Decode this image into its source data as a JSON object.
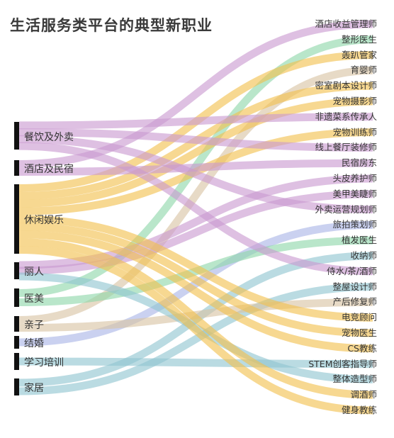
{
  "title": "生活服务类平台的典型新职业",
  "colors": {
    "pink": "#c99ad1",
    "green": "#8ed6a9",
    "yellow": "#f2c04d",
    "tan": "#d9c4a3",
    "blue": "#a9b5e6",
    "teal": "#8fc5d0"
  },
  "categories": [
    {
      "id": "canyin",
      "label": "餐饮及外卖"
    },
    {
      "id": "jiudian",
      "label": "酒店及民宿"
    },
    {
      "id": "xiuxian",
      "label": "休闲娱乐"
    },
    {
      "id": "liren",
      "label": "丽人"
    },
    {
      "id": "yimei",
      "label": "医美"
    },
    {
      "id": "qinzi",
      "label": "亲子"
    },
    {
      "id": "jiehun",
      "label": "结婚"
    },
    {
      "id": "xuexi",
      "label": "学习培训"
    },
    {
      "id": "jiaju",
      "label": "家居"
    }
  ],
  "occupations": [
    "酒店收益管理师",
    "整形医生",
    "轰趴管家",
    "育婴师",
    "密室剧本设计师",
    "宠物摄影师",
    "非遗菜系传承人",
    "宠物训练师",
    "线上餐厅装修师",
    "民宿房东",
    "头皮养护师",
    "美甲美睫师",
    "外卖运营规划师",
    "旅拍策划师",
    "植发医生",
    "收纳师",
    "侍水/茶/酒师",
    "整屋设计师",
    "产后修复师",
    "电竞顾问",
    "宠物医生",
    "CS教练",
    "STEM创客指导师",
    "整体造型师",
    "调酒师",
    "健身教练"
  ],
  "links": [
    {
      "source": "jiudian",
      "target": "酒店收益管理师",
      "color": "pink"
    },
    {
      "source": "yimei",
      "target": "整形医生",
      "color": "green"
    },
    {
      "source": "xiuxian",
      "target": "轰趴管家",
      "color": "yellow"
    },
    {
      "source": "qinzi",
      "target": "育婴师",
      "color": "tan"
    },
    {
      "source": "xiuxian",
      "target": "密室剧本设计师",
      "color": "yellow"
    },
    {
      "source": "xiuxian",
      "target": "宠物摄影师",
      "color": "yellow"
    },
    {
      "source": "canyin",
      "target": "非遗菜系传承人",
      "color": "pink"
    },
    {
      "source": "xiuxian",
      "target": "宠物训练师",
      "color": "yellow"
    },
    {
      "source": "canyin",
      "target": "线上餐厅装修师",
      "color": "pink"
    },
    {
      "source": "jiudian",
      "target": "民宿房东",
      "color": "pink"
    },
    {
      "source": "liren",
      "target": "头皮养护师",
      "color": "pink"
    },
    {
      "source": "liren",
      "target": "美甲美睫师",
      "color": "pink"
    },
    {
      "source": "canyin",
      "target": "外卖运营规划师",
      "color": "pink"
    },
    {
      "source": "jiehun",
      "target": "旅拍策划师",
      "color": "blue"
    },
    {
      "source": "yimei",
      "target": "植发医生",
      "color": "green"
    },
    {
      "source": "jiaju",
      "target": "收纳师",
      "color": "teal"
    },
    {
      "source": "canyin",
      "target": "侍水/茶/酒师",
      "color": "pink"
    },
    {
      "source": "jiaju",
      "target": "整屋设计师",
      "color": "teal"
    },
    {
      "source": "qinzi",
      "target": "产后修复师",
      "color": "tan"
    },
    {
      "source": "xiuxian",
      "target": "电竞顾问",
      "color": "yellow"
    },
    {
      "source": "xiuxian",
      "target": "宠物医生",
      "color": "yellow"
    },
    {
      "source": "xiuxian",
      "target": "CS教练",
      "color": "yellow"
    },
    {
      "source": "xuexi",
      "target": "STEM创客指导师",
      "color": "teal"
    },
    {
      "source": "liren",
      "target": "整体造型师",
      "color": "teal"
    },
    {
      "source": "xiuxian",
      "target": "调酒师",
      "color": "yellow"
    },
    {
      "source": "xiuxian",
      "target": "健身教练",
      "color": "yellow"
    }
  ]
}
